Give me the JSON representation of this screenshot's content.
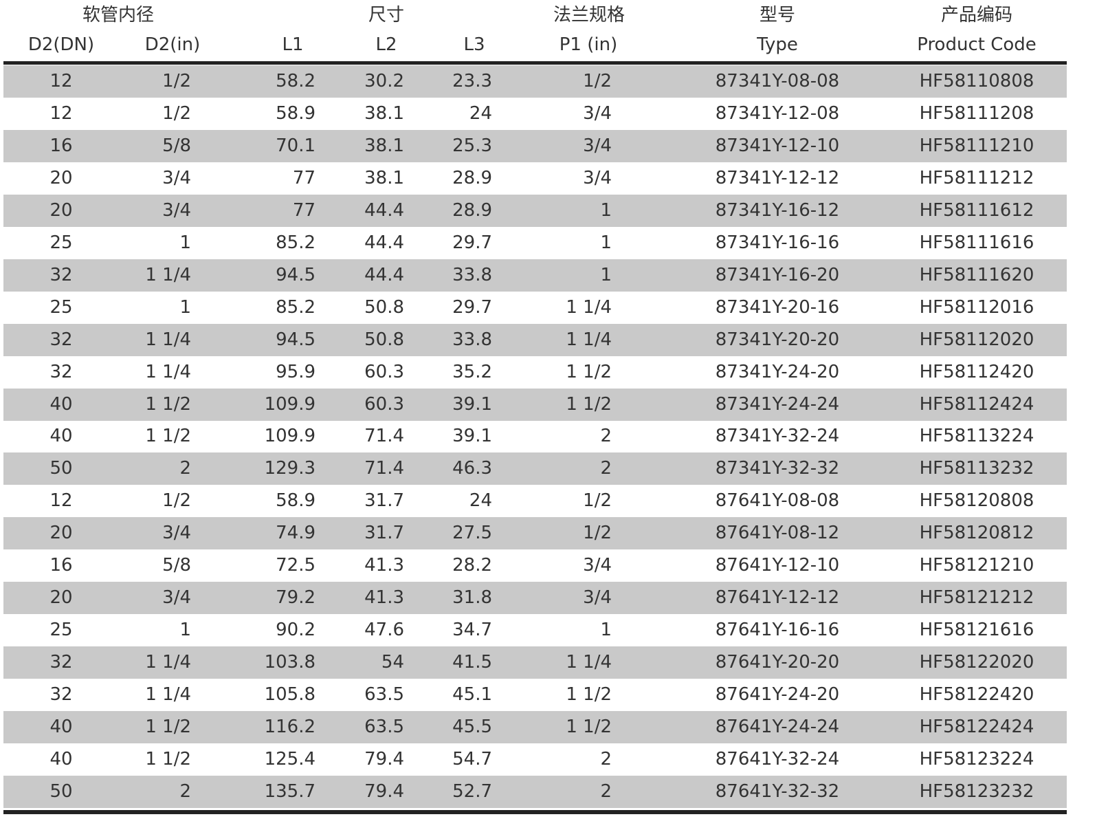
{
  "header": {
    "groups": [
      "软管内径",
      "尺寸",
      "法兰规格",
      "型号",
      "产品编码"
    ],
    "columns": [
      "D2(DN)",
      "D2(in)",
      "L1",
      "L2",
      "L3",
      "P1 (in)",
      "Type",
      "Product Code"
    ]
  },
  "table": {
    "rows": [
      [
        12,
        "1/2",
        58.2,
        30.2,
        23.3,
        "1/2",
        "87341Y-08-08",
        "HF58110808"
      ],
      [
        12,
        "1/2",
        58.9,
        38.1,
        24,
        "3/4",
        "87341Y-12-08",
        "HF58111208"
      ],
      [
        16,
        "5/8",
        70.1,
        38.1,
        25.3,
        "3/4",
        "87341Y-12-10",
        "HF58111210"
      ],
      [
        20,
        "3/4",
        77,
        38.1,
        28.9,
        "3/4",
        "87341Y-12-12",
        "HF58111212"
      ],
      [
        20,
        "3/4",
        77,
        44.4,
        28.9,
        "1",
        "87341Y-16-12",
        "HF58111612"
      ],
      [
        25,
        "1",
        85.2,
        44.4,
        29.7,
        "1",
        "87341Y-16-16",
        "HF58111616"
      ],
      [
        32,
        "1 1/4",
        94.5,
        44.4,
        33.8,
        "1",
        "87341Y-16-20",
        "HF58111620"
      ],
      [
        25,
        "1",
        85.2,
        50.8,
        29.7,
        "1 1/4",
        "87341Y-20-16",
        "HF58112016"
      ],
      [
        32,
        "1 1/4",
        94.5,
        50.8,
        33.8,
        "1 1/4",
        "87341Y-20-20",
        "HF58112020"
      ],
      [
        32,
        "1 1/4",
        95.9,
        60.3,
        35.2,
        "1 1/2",
        "87341Y-24-20",
        "HF58112420"
      ],
      [
        40,
        "1 1/2",
        109.9,
        60.3,
        39.1,
        "1 1/2",
        "87341Y-24-24",
        "HF58112424"
      ],
      [
        40,
        "1 1/2",
        109.9,
        71.4,
        39.1,
        "2",
        "87341Y-32-24",
        "HF58113224"
      ],
      [
        50,
        "2",
        129.3,
        71.4,
        46.3,
        "2",
        "87341Y-32-32",
        "HF58113232"
      ],
      [
        12,
        "1/2",
        58.9,
        31.7,
        24,
        "1/2",
        "87641Y-08-08",
        "HF58120808"
      ],
      [
        20,
        "3/4",
        74.9,
        31.7,
        27.5,
        "1/2",
        "87641Y-08-12",
        "HF58120812"
      ],
      [
        16,
        "5/8",
        72.5,
        41.3,
        28.2,
        "3/4",
        "87641Y-12-10",
        "HF58121210"
      ],
      [
        20,
        "3/4",
        79.2,
        41.3,
        31.8,
        "3/4",
        "87641Y-12-12",
        "HF58121212"
      ],
      [
        25,
        "1",
        90.2,
        47.6,
        34.7,
        "1",
        "87641Y-16-16",
        "HF58121616"
      ],
      [
        32,
        "1 1/4",
        103.8,
        54,
        41.5,
        "1 1/4",
        "87641Y-20-20",
        "HF58122020"
      ],
      [
        32,
        "1 1/4",
        105.8,
        63.5,
        45.1,
        "1 1/2",
        "87641Y-24-20",
        "HF58122420"
      ],
      [
        40,
        "1 1/2",
        116.2,
        63.5,
        45.5,
        "1 1/2",
        "87641Y-24-24",
        "HF58122424"
      ],
      [
        40,
        "1 1/2",
        125.4,
        79.4,
        54.7,
        "2",
        "87641Y-32-24",
        "HF58123224"
      ],
      [
        50,
        "2",
        135.7,
        79.4,
        52.7,
        "2",
        "87641Y-32-32",
        "HF58123232"
      ]
    ]
  }
}
